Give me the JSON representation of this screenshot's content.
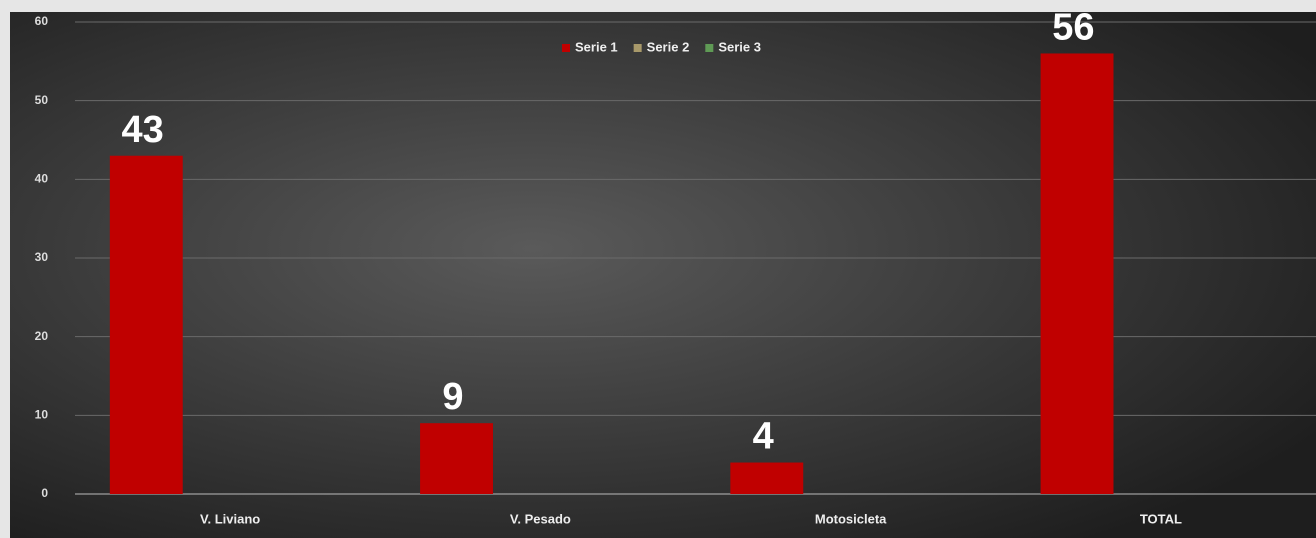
{
  "chart_data": {
    "type": "bar",
    "categories": [
      "V. Liviano",
      "V. Pesado",
      "Motosicleta",
      "TOTAL"
    ],
    "series": [
      {
        "name": "Serie 1",
        "color": "#c00000",
        "values": [
          43,
          9,
          4,
          56
        ]
      },
      {
        "name": "Serie 2",
        "color": "#a8996a",
        "values": [
          null,
          null,
          null,
          null
        ]
      },
      {
        "name": "Serie 3",
        "color": "#5f9a55",
        "values": [
          null,
          null,
          null,
          null
        ]
      }
    ],
    "ylim": [
      0,
      60
    ],
    "yticks": [
      0,
      10,
      20,
      30,
      40,
      50,
      60
    ],
    "grid": true,
    "legend": "top"
  }
}
